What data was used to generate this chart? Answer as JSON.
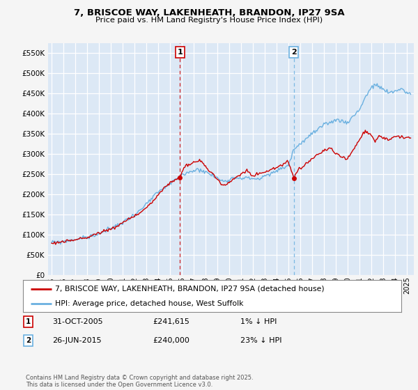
{
  "title_line1": "7, BRISCOE WAY, LAKENHEATH, BRANDON, IP27 9SA",
  "title_line2": "Price paid vs. HM Land Registry's House Price Index (HPI)",
  "background_color": "#f5f5f5",
  "plot_bg_color": "#dce8f5",
  "grid_color": "#ffffff",
  "hpi_color": "#6ab0e0",
  "price_color": "#cc0000",
  "marker1_label": "31-OCT-2005",
  "marker1_price": "£241,615",
  "marker1_pct": "1% ↓ HPI",
  "marker1_x": 2005.833,
  "marker1_y": 241615,
  "marker2_label": "26-JUN-2015",
  "marker2_price": "£240,000",
  "marker2_pct": "23% ↓ HPI",
  "marker2_x": 2015.458,
  "marker2_y": 240000,
  "legend_line1": "7, BRISCOE WAY, LAKENHEATH, BRANDON, IP27 9SA (detached house)",
  "legend_line2": "HPI: Average price, detached house, West Suffolk",
  "footer": "Contains HM Land Registry data © Crown copyright and database right 2025.\nThis data is licensed under the Open Government Licence v3.0.",
  "ylim": [
    0,
    575000
  ],
  "yticks": [
    0,
    50000,
    100000,
    150000,
    200000,
    250000,
    300000,
    350000,
    400000,
    450000,
    500000,
    550000
  ],
  "xlim_min": 1994.7,
  "xlim_max": 2025.6
}
